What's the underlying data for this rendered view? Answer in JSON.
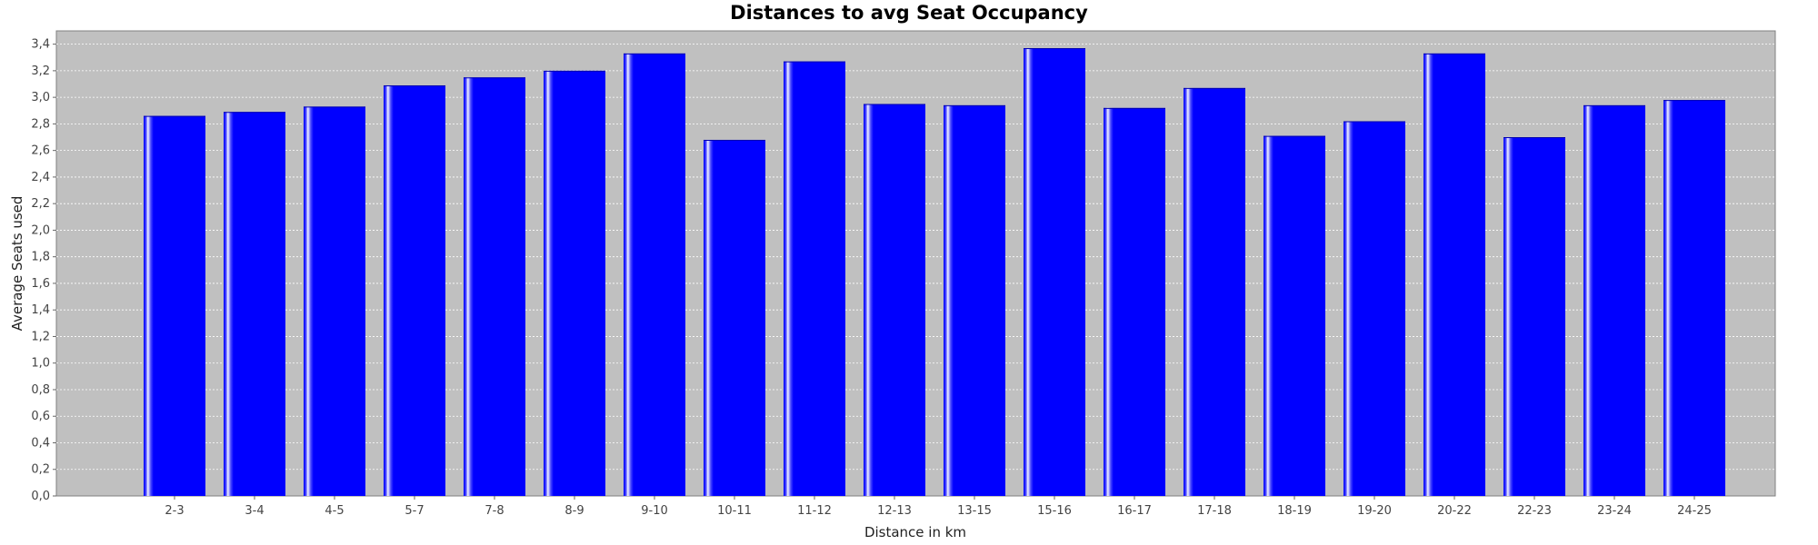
{
  "chart_data": {
    "type": "bar",
    "title": "Distances to avg Seat Occupancy",
    "xlabel": "Distance in km",
    "ylabel": "Average Seats used",
    "categories": [
      "2-3",
      "3-4",
      "4-5",
      "5-7",
      "7-8",
      "8-9",
      "9-10",
      "10-11",
      "11-12",
      "12-13",
      "13-15",
      "15-16",
      "16-17",
      "17-18",
      "18-19",
      "19-20",
      "20-22",
      "22-23",
      "23-24",
      "24-25"
    ],
    "values": [
      2.86,
      2.89,
      2.93,
      3.09,
      3.15,
      3.2,
      3.33,
      2.68,
      3.27,
      2.95,
      2.94,
      3.37,
      2.92,
      3.07,
      2.71,
      2.82,
      3.33,
      2.7,
      2.94,
      2.98
    ],
    "ylim": [
      0,
      3.5
    ],
    "yticks": [
      "0,0",
      "0,2",
      "0,4",
      "0,6",
      "0,8",
      "1,0",
      "1,2",
      "1,4",
      "1,6",
      "1,8",
      "2,0",
      "2,2",
      "2,4",
      "2,6",
      "2,8",
      "3,0",
      "3,2",
      "3,4"
    ],
    "grid": true,
    "colors": {
      "bar": "#0000ff",
      "plot_background": "#c0c0c0",
      "gridline": "#ffffff"
    }
  }
}
